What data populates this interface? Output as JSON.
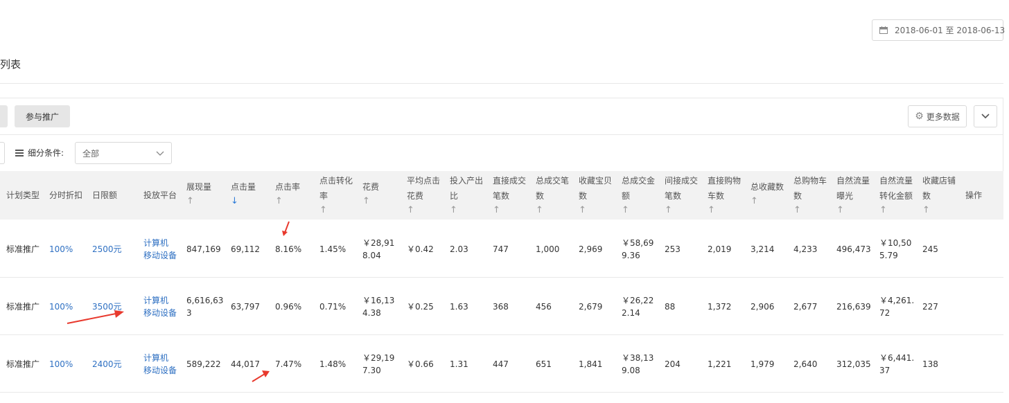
{
  "date_range": "2018-06-01 至 2018-06-13",
  "section_title": "列表",
  "tab_participate": "参与推广",
  "more_data": "更多数据",
  "filter": {
    "label": "细分条件:",
    "selected": "全部"
  },
  "columns": [
    {
      "l1": "计划类型",
      "l2": "",
      "sort": ""
    },
    {
      "l1": "分时折扣",
      "l2": "",
      "sort": ""
    },
    {
      "l1": "日限额",
      "l2": "",
      "sort": ""
    },
    {
      "l1": "投放平台",
      "l2": "",
      "sort": ""
    },
    {
      "l1": "展现量",
      "l2": "",
      "sort": "↑"
    },
    {
      "l1": "点击量",
      "l2": "",
      "sort": "↓"
    },
    {
      "l1": "点击率",
      "l2": "",
      "sort": "↑"
    },
    {
      "l1": "点击转化",
      "l2": "率",
      "sort": "↑"
    },
    {
      "l1": "花费",
      "l2": "",
      "sort": "↑"
    },
    {
      "l1": "平均点击",
      "l2": "花费",
      "sort": "↑"
    },
    {
      "l1": "投入产出",
      "l2": "比",
      "sort": "↑"
    },
    {
      "l1": "直接成交",
      "l2": "笔数",
      "sort": "↑"
    },
    {
      "l1": "总成交笔",
      "l2": "数",
      "sort": "↑"
    },
    {
      "l1": "收藏宝贝",
      "l2": "数",
      "sort": "↑"
    },
    {
      "l1": "总成交金",
      "l2": "额",
      "sort": "↑"
    },
    {
      "l1": "间接成交",
      "l2": "笔数",
      "sort": "↑"
    },
    {
      "l1": "直接购物",
      "l2": "车数",
      "sort": "↑"
    },
    {
      "l1": "总收藏数",
      "l2": "",
      "sort": "↑"
    },
    {
      "l1": "总购物车",
      "l2": "数",
      "sort": "↑"
    },
    {
      "l1": "自然流量",
      "l2": "曝光",
      "sort": "↑"
    },
    {
      "l1": "自然流量",
      "l2": "转化金额",
      "sort": "↑"
    },
    {
      "l1": "收藏店铺",
      "l2": "数",
      "sort": "↑"
    },
    {
      "l1": "操作",
      "l2": "",
      "sort": ""
    }
  ],
  "rows": [
    {
      "type": "标准推广",
      "discount": "100%",
      "limit": "2500元",
      "platform1": "计算机",
      "platform2": "移动设备",
      "impressions": "847,169",
      "clicks": "69,112",
      "ctr": "8.16%",
      "cvr": "1.45%",
      "cost1": "￥28,91",
      "cost2": "8.04",
      "cpc": "￥0.42",
      "roi": "2.03",
      "direct_orders": "747",
      "total_orders": "1,000",
      "fav_items": "2,969",
      "gmv1": "￥58,69",
      "gmv2": "9.36",
      "indirect_orders": "253",
      "direct_cart": "2,019",
      "total_fav": "3,214",
      "total_cart": "4,233",
      "natural_exposure": "496,473",
      "natural_gmv1": "￥10,50",
      "natural_gmv2": "5.79",
      "fav_shop": "245"
    },
    {
      "type": "标准推广",
      "discount": "100%",
      "limit": "3500元",
      "platform1": "计算机",
      "platform2": "移动设备",
      "impressions": "6,616,63",
      "impressions2": "3",
      "clicks": "63,797",
      "ctr": "0.96%",
      "cvr": "0.71%",
      "cost1": "￥16,13",
      "cost2": "4.38",
      "cpc": "￥0.25",
      "roi": "1.63",
      "direct_orders": "368",
      "total_orders": "456",
      "fav_items": "2,679",
      "gmv1": "￥26,22",
      "gmv2": "2.14",
      "indirect_orders": "88",
      "direct_cart": "1,372",
      "total_fav": "2,906",
      "total_cart": "2,677",
      "natural_exposure": "216,639",
      "natural_gmv1": "￥4,261.",
      "natural_gmv2": "72",
      "fav_shop": "227"
    },
    {
      "type": "标准推广",
      "discount": "100%",
      "limit": "2400元",
      "platform1": "计算机",
      "platform2": "移动设备",
      "impressions": "589,222",
      "clicks": "44,017",
      "ctr": "7.47%",
      "cvr": "1.48%",
      "cost1": "￥29,19",
      "cost2": "7.30",
      "cpc": "￥0.66",
      "roi": "1.31",
      "direct_orders": "447",
      "total_orders": "651",
      "fav_items": "1,841",
      "gmv1": "￥38,13",
      "gmv2": "9.08",
      "indirect_orders": "204",
      "direct_cart": "1,221",
      "total_fav": "1,979",
      "total_cart": "2,640",
      "natural_exposure": "312,035",
      "natural_gmv1": "￥6,441.",
      "natural_gmv2": "37",
      "fav_shop": "138"
    }
  ],
  "colors": {
    "link": "#2d6fc2",
    "sort_active": "#2d7bd8",
    "annotation_arrow": "#e8392d",
    "header_bg": "#f2f2f2"
  }
}
